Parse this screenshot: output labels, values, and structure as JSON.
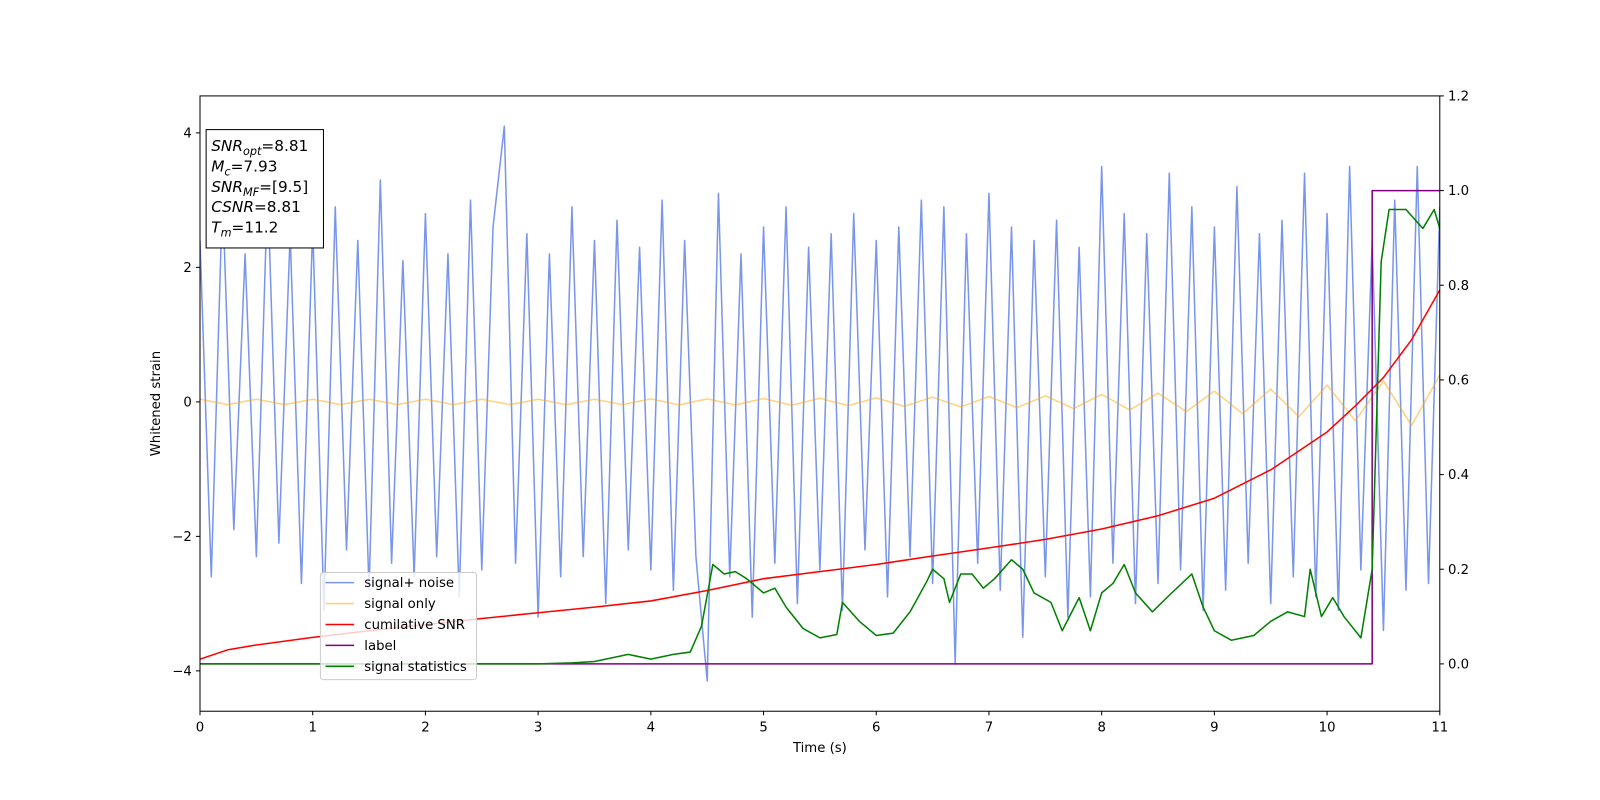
{
  "chart_data": {
    "type": "line",
    "xlabel": "Time (s)",
    "ylabel": "Whitened strain",
    "xlim": [
      0,
      11
    ],
    "xticks": [
      0,
      1,
      2,
      3,
      4,
      5,
      6,
      7,
      8,
      9,
      10,
      11
    ],
    "ylim": [
      -4.6,
      4.55
    ],
    "yticks": [
      {
        "value": -4,
        "label": "−4"
      },
      {
        "value": -2,
        "label": "−2"
      },
      0,
      2,
      4
    ],
    "y2lim": [
      -0.1,
      1.2
    ],
    "y2ticks": [
      {
        "value": 0,
        "label": "0.0"
      },
      {
        "value": 0.2,
        "label": "0.2"
      },
      {
        "value": 0.4,
        "label": "0.4"
      },
      {
        "value": 0.6,
        "label": "0.6"
      },
      {
        "value": 0.8,
        "label": "0.8"
      },
      {
        "value": 1.0,
        "label": "1.0"
      },
      {
        "value": 1.2,
        "label": "1.2"
      }
    ],
    "grid": false,
    "legend_loc": "lower left",
    "annotation": {
      "lines": [
        {
          "name": "SNR",
          "sub": "opt",
          "rest": "=8.81"
        },
        {
          "name": "M",
          "sub": "c",
          "rest": "=7.93"
        },
        {
          "name": "SNR",
          "sub": "MF",
          "rest": "=[9.5]"
        },
        {
          "name": "CSNR",
          "sub": null,
          "rest": "=8.81"
        },
        {
          "name": "T",
          "sub": "m",
          "rest": "=11.2"
        }
      ]
    },
    "series": [
      {
        "name": "signal+ noise",
        "color": "#4169e1",
        "alpha": 0.7,
        "x": [
          0,
          0.1,
          0.2,
          0.3,
          0.4,
          0.5,
          0.6,
          0.7,
          0.8,
          0.9,
          1,
          1.1,
          1.2,
          1.3,
          1.4,
          1.5,
          1.6,
          1.7,
          1.8,
          1.9,
          2,
          2.1,
          2.2,
          2.3,
          2.4,
          2.5,
          2.6,
          2.7,
          2.8,
          2.9,
          3,
          3.1,
          3.2,
          3.3,
          3.4,
          3.5,
          3.6,
          3.7,
          3.8,
          3.9,
          4,
          4.1,
          4.2,
          4.3,
          4.4,
          4.5,
          4.6,
          4.7,
          4.8,
          4.9,
          5,
          5.1,
          5.2,
          5.3,
          5.4,
          5.5,
          5.6,
          5.7,
          5.8,
          5.9,
          6,
          6.1,
          6.2,
          6.3,
          6.4,
          6.5,
          6.6,
          6.7,
          6.8,
          6.9,
          7,
          7.1,
          7.2,
          7.3,
          7.4,
          7.5,
          7.6,
          7.7,
          7.8,
          7.9,
          8,
          8.1,
          8.2,
          8.3,
          8.4,
          8.5,
          8.6,
          8.7,
          8.8,
          8.9,
          9,
          9.1,
          9.2,
          9.3,
          9.4,
          9.5,
          9.6,
          9.7,
          9.8,
          9.9,
          10,
          10.1,
          10.2,
          10.3,
          10.4,
          10.5,
          10.6,
          10.7,
          10.8,
          10.9,
          11
        ],
        "values": [
          2.4,
          -2.6,
          3.1,
          -1.9,
          2.2,
          -2.3,
          3.2,
          -2.1,
          2.5,
          -2.7,
          2.6,
          -3.1,
          2.9,
          -2.2,
          2.4,
          -2.8,
          3.3,
          -2.4,
          2.1,
          -2.6,
          2.8,
          -2.3,
          2.2,
          -2.9,
          3.0,
          -2.5,
          2.6,
          4.1,
          -2.4,
          2.5,
          -3.2,
          2.2,
          -2.6,
          2.9,
          -2.3,
          2.4,
          -3.0,
          2.7,
          -2.2,
          2.3,
          -2.5,
          3.0,
          -2.8,
          2.4,
          -2.3,
          -4.15,
          3.1,
          -2.6,
          2.2,
          -3.2,
          2.6,
          -2.4,
          2.9,
          -3.0,
          2.3,
          -2.5,
          2.5,
          -3.1,
          2.8,
          -2.2,
          2.4,
          -2.9,
          2.6,
          -2.3,
          3.0,
          -2.7,
          2.9,
          -3.9,
          2.5,
          -2.4,
          3.1,
          -2.8,
          2.6,
          -3.5,
          2.4,
          -2.6,
          2.7,
          -3.2,
          2.3,
          -2.9,
          3.5,
          -2.4,
          2.8,
          -3.0,
          2.5,
          -2.7,
          3.4,
          -2.5,
          2.9,
          -3.1,
          2.6,
          -2.8,
          3.2,
          -2.4,
          2.5,
          -3.0,
          2.7,
          -2.6,
          3.4,
          -2.9,
          2.8,
          -3.1,
          3.5,
          -2.5,
          2.4,
          -3.4,
          3.0,
          -2.8,
          3.5,
          -2.7,
          2.9
        ]
      },
      {
        "name": "signal only",
        "color": "#ffa500",
        "alpha": 0.5,
        "x": [
          0,
          0.25,
          0.5,
          0.75,
          1,
          1.25,
          1.5,
          1.75,
          2,
          2.25,
          2.5,
          2.75,
          3,
          3.25,
          3.5,
          3.75,
          4,
          4.25,
          4.5,
          4.75,
          5,
          5.25,
          5.5,
          5.75,
          6,
          6.25,
          6.5,
          6.75,
          7,
          7.25,
          7.5,
          7.75,
          8,
          8.25,
          8.5,
          8.75,
          9,
          9.25,
          9.5,
          9.75,
          10,
          10.25,
          10.5,
          10.75,
          11
        ],
        "values": [
          0.04,
          -0.04,
          0.04,
          -0.04,
          0.04,
          -0.04,
          0.04,
          -0.04,
          0.04,
          -0.04,
          0.04,
          -0.04,
          0.04,
          -0.04,
          0.04,
          -0.04,
          0.045,
          -0.045,
          0.045,
          -0.045,
          0.05,
          -0.05,
          0.055,
          -0.055,
          0.06,
          -0.065,
          0.07,
          -0.075,
          0.08,
          -0.085,
          0.09,
          -0.1,
          0.11,
          -0.12,
          0.13,
          -0.145,
          0.16,
          -0.175,
          0.19,
          -0.22,
          0.25,
          -0.28,
          0.31,
          -0.35,
          0.4
        ]
      },
      {
        "name": "cumilative SNR",
        "color": "#ff0000",
        "axis": "y2",
        "x": [
          0,
          0.25,
          0.5,
          1,
          1.5,
          2,
          2.5,
          3,
          3.5,
          4,
          4.5,
          5,
          5.5,
          6,
          6.5,
          7,
          7.5,
          8,
          8.5,
          9,
          9.5,
          10,
          10.25,
          10.5,
          10.75,
          11
        ],
        "values": [
          0.01,
          0.03,
          0.04,
          0.056,
          0.07,
          0.083,
          0.096,
          0.108,
          0.12,
          0.133,
          0.155,
          0.18,
          0.195,
          0.21,
          0.228,
          0.245,
          0.263,
          0.285,
          0.313,
          0.35,
          0.41,
          0.49,
          0.545,
          0.605,
          0.685,
          0.79
        ]
      },
      {
        "name": "label",
        "color": "#800080",
        "axis": "y2",
        "x": [
          0,
          10.4,
          10.4,
          11
        ],
        "values": [
          0,
          0,
          1,
          1
        ]
      },
      {
        "name": "signal statistics",
        "color": "#008000",
        "axis": "y2",
        "x": [
          0,
          1,
          2,
          3,
          3.3,
          3.5,
          3.7,
          3.8,
          4.0,
          4.2,
          4.35,
          4.45,
          4.55,
          4.65,
          4.75,
          4.85,
          5.0,
          5.1,
          5.2,
          5.35,
          5.5,
          5.65,
          5.7,
          5.85,
          6.0,
          6.15,
          6.3,
          6.45,
          6.5,
          6.6,
          6.65,
          6.75,
          6.85,
          6.95,
          7.05,
          7.2,
          7.3,
          7.4,
          7.55,
          7.65,
          7.8,
          7.9,
          8.0,
          8.1,
          8.2,
          8.3,
          8.45,
          8.6,
          8.8,
          8.9,
          9.0,
          9.15,
          9.35,
          9.5,
          9.65,
          9.8,
          9.85,
          9.95,
          10.05,
          10.15,
          10.3,
          10.4,
          10.48,
          10.55,
          10.7,
          10.85,
          10.95,
          11
        ],
        "values": [
          0,
          0,
          0,
          0,
          0.002,
          0.005,
          0.015,
          0.02,
          0.01,
          0.02,
          0.025,
          0.08,
          0.21,
          0.19,
          0.195,
          0.18,
          0.15,
          0.16,
          0.12,
          0.075,
          0.055,
          0.062,
          0.13,
          0.09,
          0.06,
          0.065,
          0.11,
          0.175,
          0.2,
          0.18,
          0.13,
          0.19,
          0.19,
          0.16,
          0.18,
          0.22,
          0.2,
          0.15,
          0.13,
          0.07,
          0.14,
          0.07,
          0.15,
          0.17,
          0.21,
          0.15,
          0.11,
          0.145,
          0.19,
          0.12,
          0.07,
          0.05,
          0.06,
          0.09,
          0.11,
          0.1,
          0.2,
          0.1,
          0.14,
          0.1,
          0.055,
          0.2,
          0.85,
          0.96,
          0.96,
          0.92,
          0.96,
          0.92
        ]
      }
    ]
  }
}
